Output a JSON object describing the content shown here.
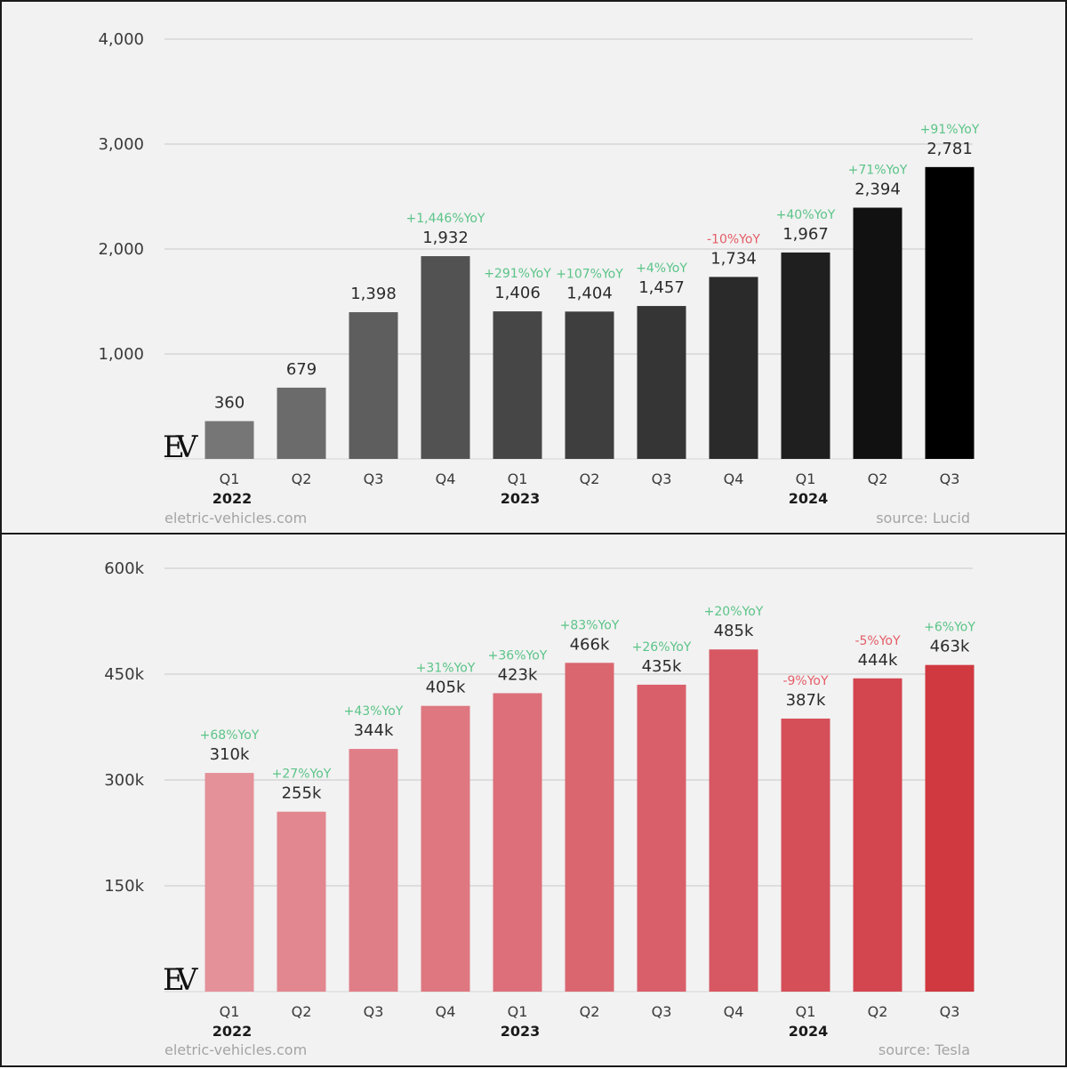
{
  "chart_data": [
    {
      "type": "bar",
      "source": "source: Lucid",
      "watermark": "eletric-vehicles.com",
      "categories": [
        "Q1",
        "Q2",
        "Q3",
        "Q4",
        "Q1",
        "Q2",
        "Q3",
        "Q4",
        "Q1",
        "Q2",
        "Q3"
      ],
      "years": [
        {
          "label": "2022",
          "index": 0
        },
        {
          "label": "2023",
          "index": 4
        },
        {
          "label": "2024",
          "index": 8
        }
      ],
      "values": [
        360,
        679,
        1398,
        1932,
        1406,
        1404,
        1457,
        1734,
        1967,
        2394,
        2781
      ],
      "value_labels": [
        "360",
        "679",
        "1,398",
        "1,932",
        "1,406",
        "1,404",
        "1,457",
        "1,734",
        "1,967",
        "2,394",
        "2,781"
      ],
      "yoy_labels": [
        "",
        "",
        "",
        "+1,446%YoY",
        "+291%YoY",
        "+107%YoY",
        "+4%YoY",
        "-10%YoY",
        "+40%YoY",
        "+71%YoY",
        "+91%YoY"
      ],
      "yticks": [
        1000,
        2000,
        3000,
        4000
      ],
      "ytick_labels": [
        "1,000",
        "2,000",
        "3,000",
        "4,000"
      ],
      "ylim": [
        0,
        4000
      ],
      "bar_colors": [
        "#767676",
        "#6b6b6b",
        "#5e5e5e",
        "#525252",
        "#464646",
        "#3e3e3e",
        "#353535",
        "#2a2a2a",
        "#1f1f1f",
        "#111111",
        "#000000"
      ]
    },
    {
      "type": "bar",
      "source": "source: Tesla",
      "watermark": "eletric-vehicles.com",
      "categories": [
        "Q1",
        "Q2",
        "Q3",
        "Q4",
        "Q1",
        "Q2",
        "Q3",
        "Q4",
        "Q1",
        "Q2",
        "Q3"
      ],
      "years": [
        {
          "label": "2022",
          "index": 0
        },
        {
          "label": "2023",
          "index": 4
        },
        {
          "label": "2024",
          "index": 8
        }
      ],
      "values": [
        310,
        255,
        344,
        405,
        423,
        466,
        435,
        485,
        387,
        444,
        463
      ],
      "value_labels": [
        "310k",
        "255k",
        "344k",
        "405k",
        "423k",
        "466k",
        "435k",
        "485k",
        "387k",
        "444k",
        "463k"
      ],
      "yoy_labels": [
        "+68%YoY",
        "+27%YoY",
        "+43%YoY",
        "+31%YoY",
        "+36%YoY",
        "+83%YoY",
        "+26%YoY",
        "+20%YoY",
        "-9%YoY",
        "-5%YoY",
        "+6%YoY"
      ],
      "yticks": [
        150,
        300,
        450,
        600
      ],
      "ytick_labels": [
        "150k",
        "300k",
        "450k",
        "600k"
      ],
      "ylim": [
        0,
        600
      ],
      "bar_colors": [
        "#e49199",
        "#e2868f",
        "#e07e87",
        "#de7780",
        "#dc6f79",
        "#da6670",
        "#d95f6a",
        "#d75862",
        "#d54f59",
        "#d34650",
        "#d03940"
      ]
    }
  ],
  "colors": {
    "positive": "#5bc488",
    "negative": "#e35d67",
    "value_text": "#2b2b2b",
    "axis_text": "#3a3a3a",
    "grid": "#c8c8c8"
  },
  "logo_text": "EV"
}
